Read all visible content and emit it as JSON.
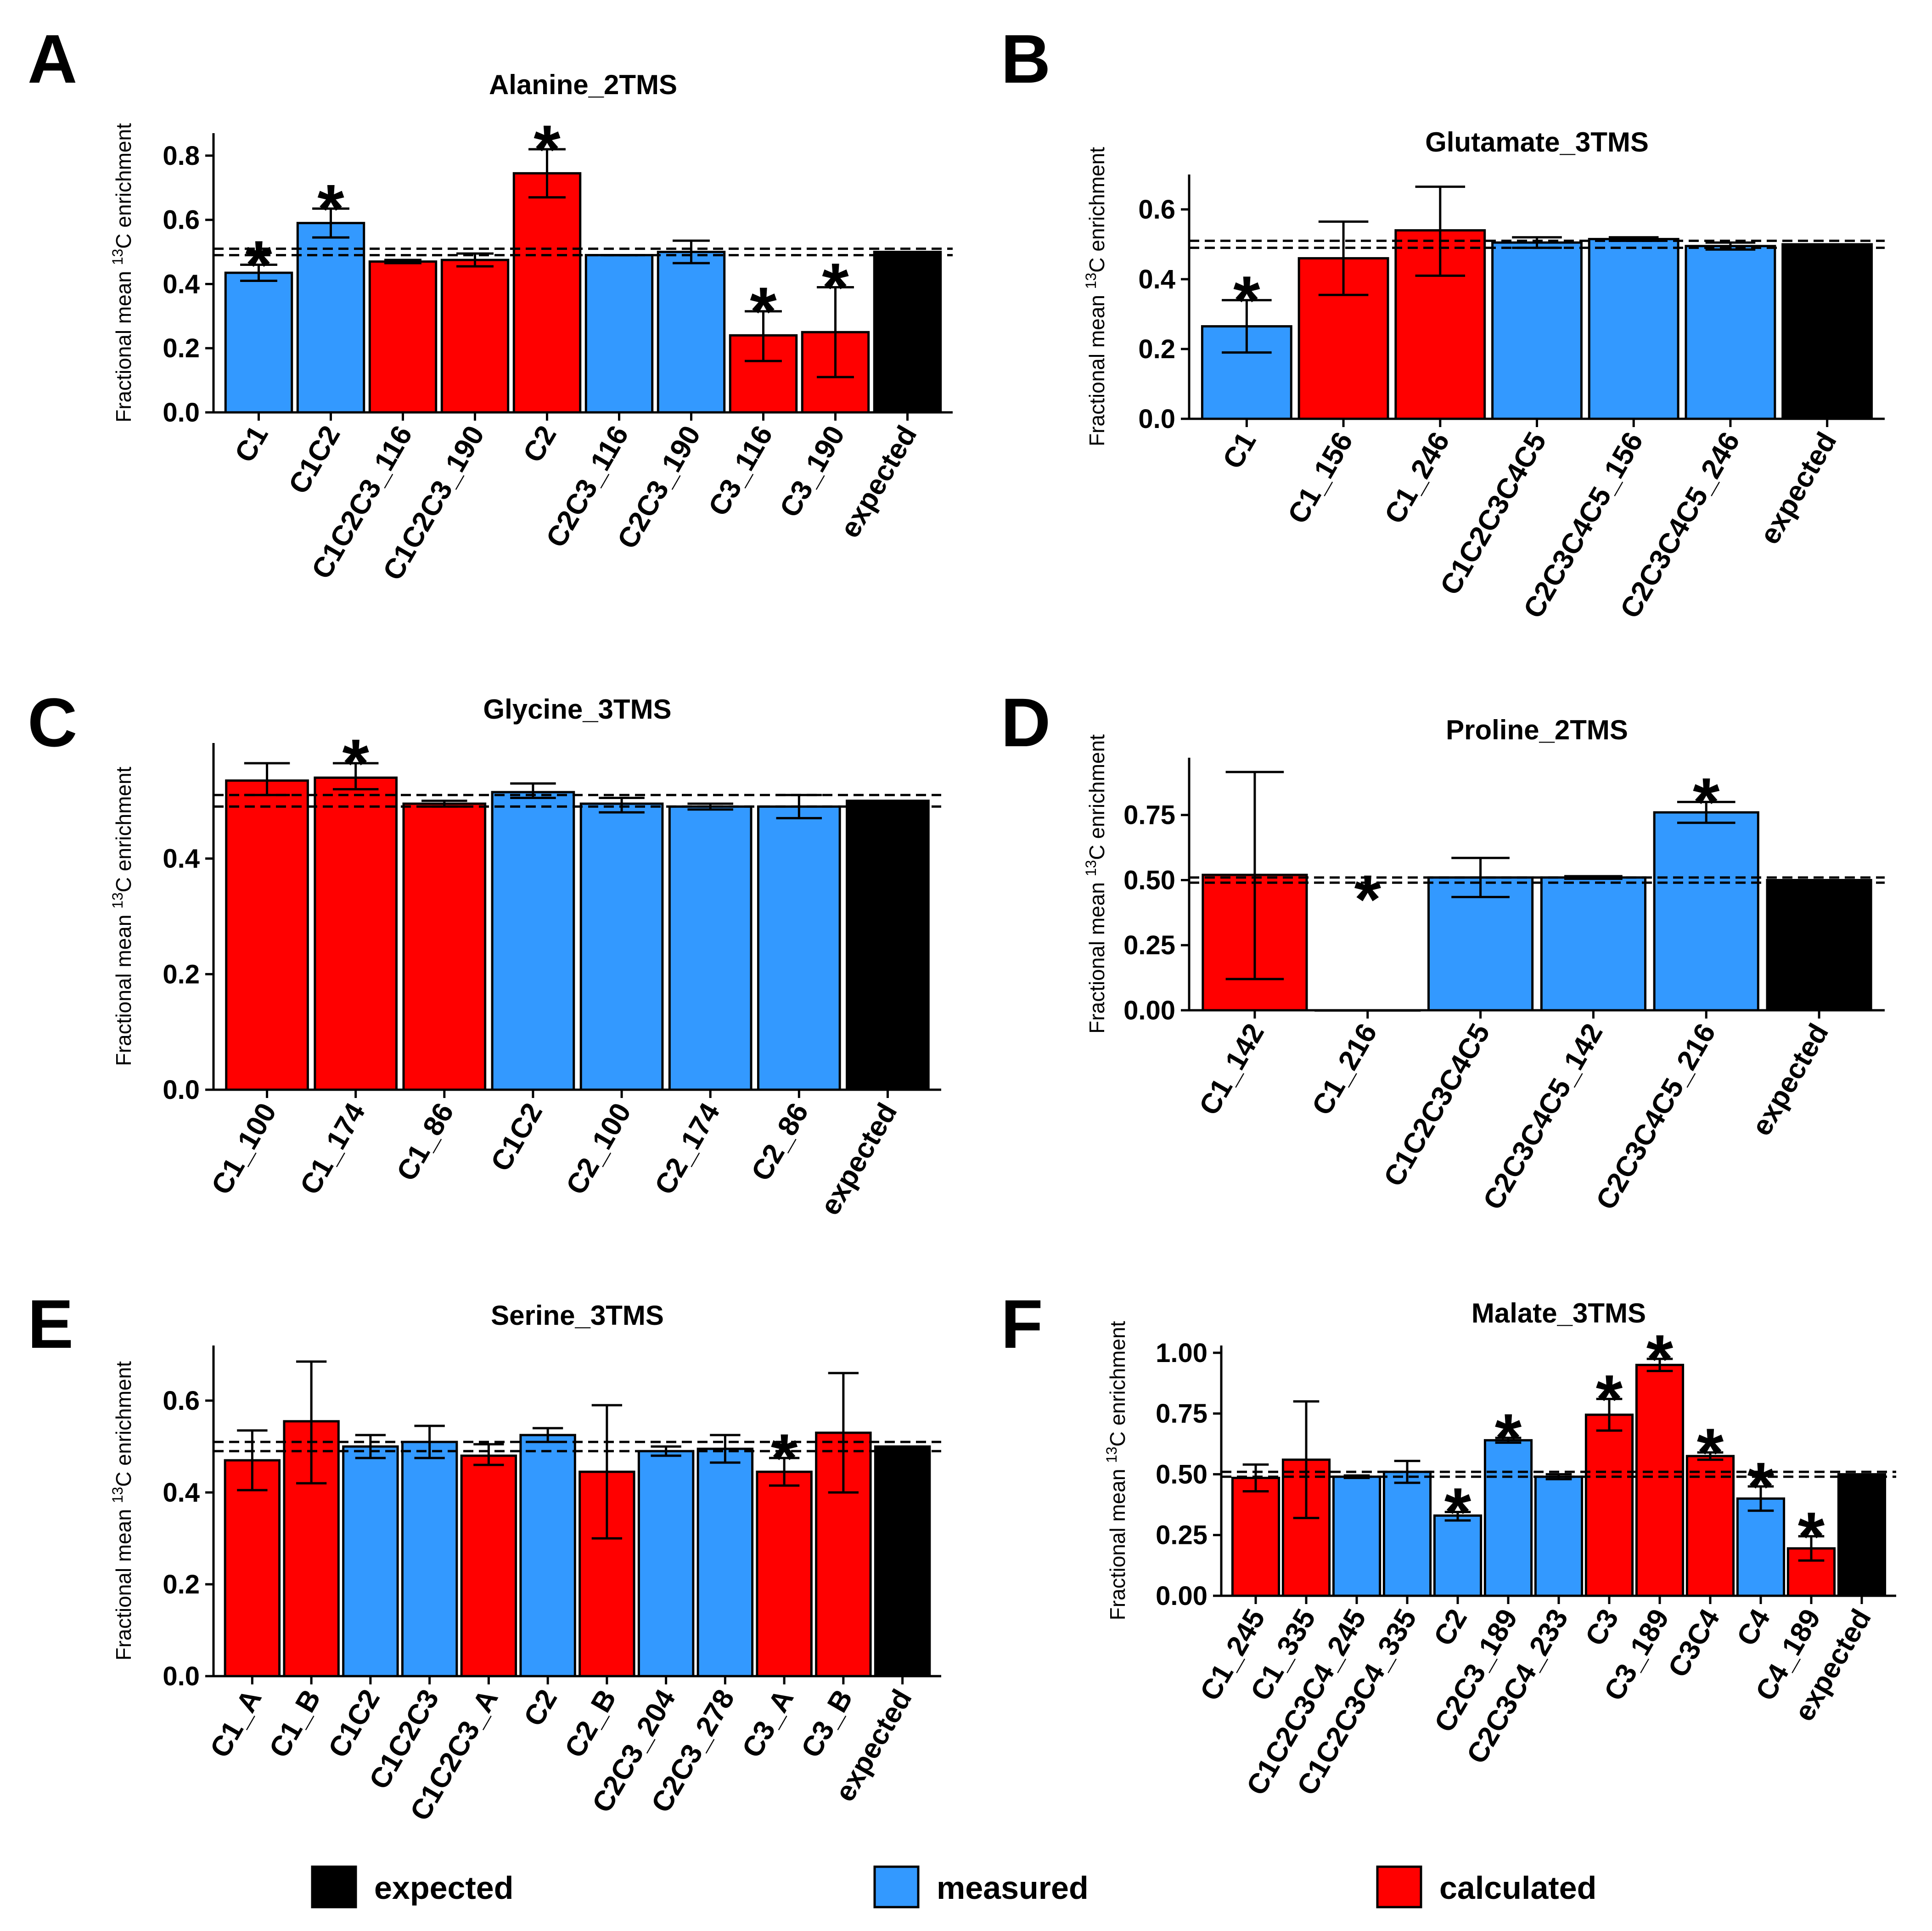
{
  "ylabel_prefix": "Fractional mean ",
  "ylabel_sup": "13",
  "ylabel_suffix": "C enrichment",
  "colors": {
    "expected": "#000000",
    "measured": "#3399ff",
    "calculated": "#ff0000",
    "none": "#ffffff"
  },
  "legend": [
    {
      "key": "expected",
      "label": "expected"
    },
    {
      "key": "measured",
      "label": "measured"
    },
    {
      "key": "calculated",
      "label": "calculated"
    }
  ],
  "chart_data": [
    {
      "panel": "A",
      "title": "Alanine_2TMS",
      "type": "bar",
      "ylim": [
        0,
        0.87
      ],
      "yticks": [
        0.0,
        0.2,
        0.4,
        0.6,
        0.8
      ],
      "tick_labels": [
        "0.0",
        "0.2",
        "0.4",
        "0.6",
        "0.8"
      ],
      "ref_lines": [
        0.49,
        0.51
      ],
      "categories": [
        "C1",
        "C1C2",
        "C1C2C3_116",
        "C1C2C3_190",
        "C2",
        "C2C3_116",
        "C2C3_190",
        "C3_116",
        "C3_190",
        "expected"
      ],
      "values": [
        0.435,
        0.59,
        0.47,
        0.475,
        0.745,
        0.49,
        0.5,
        0.24,
        0.25,
        0.5
      ],
      "err_low": [
        0.41,
        0.545,
        0.465,
        0.455,
        0.67,
        0.49,
        0.465,
        0.16,
        0.11,
        null
      ],
      "err_high": [
        0.46,
        0.635,
        0.475,
        0.495,
        0.82,
        0.49,
        0.535,
        0.315,
        0.39,
        null
      ],
      "group": [
        "measured",
        "measured",
        "calculated",
        "calculated",
        "calculated",
        "measured",
        "measured",
        "calculated",
        "calculated",
        "expected"
      ],
      "significant": [
        true,
        true,
        false,
        false,
        true,
        false,
        false,
        true,
        true,
        false
      ]
    },
    {
      "panel": "B",
      "title": "Glutamate_3TMS",
      "type": "bar",
      "ylim": [
        0,
        0.7
      ],
      "yticks": [
        0.0,
        0.2,
        0.4,
        0.6
      ],
      "tick_labels": [
        "0.0",
        "0.2",
        "0.4",
        "0.6"
      ],
      "ref_lines": [
        0.49,
        0.51
      ],
      "categories": [
        "C1",
        "C1_156",
        "C1_246",
        "C1C2C3C4C5",
        "C2C3C4C5_156",
        "C2C3C4C5_246",
        "expected"
      ],
      "values": [
        0.265,
        0.46,
        0.54,
        0.505,
        0.515,
        0.495,
        0.5
      ],
      "err_low": [
        0.19,
        0.355,
        0.41,
        0.49,
        0.51,
        0.485,
        null
      ],
      "err_high": [
        0.34,
        0.565,
        0.665,
        0.52,
        0.52,
        0.505,
        null
      ],
      "group": [
        "measured",
        "calculated",
        "calculated",
        "measured",
        "measured",
        "measured",
        "expected"
      ],
      "significant": [
        true,
        false,
        false,
        false,
        false,
        false,
        false
      ]
    },
    {
      "panel": "C",
      "title": "Glycine_3TMS",
      "type": "bar",
      "ylim": [
        0,
        0.6
      ],
      "yticks": [
        0.0,
        0.2,
        0.4
      ],
      "tick_labels": [
        "0.0",
        "0.2",
        "0.4"
      ],
      "ref_lines": [
        0.49,
        0.51
      ],
      "categories": [
        "C1_100",
        "C1_174",
        "C1_86",
        "C1C2",
        "C2_100",
        "C2_174",
        "C2_86",
        "expected"
      ],
      "values": [
        0.535,
        0.54,
        0.495,
        0.515,
        0.495,
        0.49,
        0.49,
        0.5
      ],
      "err_low": [
        0.51,
        0.52,
        0.49,
        0.505,
        0.48,
        0.485,
        0.47,
        null
      ],
      "err_high": [
        0.565,
        0.565,
        0.5,
        0.53,
        0.505,
        0.495,
        0.51,
        null
      ],
      "group": [
        "calculated",
        "calculated",
        "calculated",
        "measured",
        "measured",
        "measured",
        "measured",
        "expected"
      ],
      "significant": [
        false,
        true,
        false,
        false,
        false,
        false,
        false,
        false
      ]
    },
    {
      "panel": "D",
      "title": "Proline_2TMS",
      "type": "bar",
      "ylim": [
        0,
        0.97
      ],
      "yticks": [
        0.0,
        0.25,
        0.5,
        0.75
      ],
      "tick_labels": [
        "0.00",
        "0.25",
        "0.50",
        "0.75"
      ],
      "ref_lines": [
        0.49,
        0.51
      ],
      "categories": [
        "C1_142",
        "C1_216",
        "C1C2C3C4C5",
        "C2C3C4C5_142",
        "C2C3C4C5_216",
        "expected"
      ],
      "values": [
        0.52,
        0.0,
        0.51,
        0.51,
        0.76,
        0.5
      ],
      "err_low": [
        0.12,
        null,
        0.435,
        0.505,
        0.72,
        null
      ],
      "err_high": [
        0.915,
        null,
        0.585,
        0.515,
        0.8,
        null
      ],
      "group": [
        "calculated",
        "none",
        "measured",
        "measured",
        "measured",
        "expected"
      ],
      "significant": [
        false,
        true,
        false,
        false,
        true,
        false
      ]
    },
    {
      "panel": "E",
      "title": "Serine_3TMS",
      "type": "bar",
      "ylim": [
        0,
        0.72
      ],
      "yticks": [
        0.0,
        0.2,
        0.4,
        0.6
      ],
      "tick_labels": [
        "0.0",
        "0.2",
        "0.4",
        "0.6"
      ],
      "ref_lines": [
        0.49,
        0.51
      ],
      "categories": [
        "C1_A",
        "C1_B",
        "C1C2",
        "C1C2C3",
        "C1C2C3_A",
        "C2",
        "C2_B",
        "C2C3_204",
        "C2C3_278",
        "C3_A",
        "C3_B",
        "expected"
      ],
      "values": [
        0.47,
        0.555,
        0.5,
        0.51,
        0.48,
        0.525,
        0.445,
        0.49,
        0.495,
        0.445,
        0.53,
        0.5
      ],
      "err_low": [
        0.405,
        0.42,
        0.475,
        0.475,
        0.46,
        0.51,
        0.3,
        0.48,
        0.465,
        0.415,
        0.4,
        null
      ],
      "err_high": [
        0.535,
        0.685,
        0.525,
        0.545,
        0.505,
        0.54,
        0.59,
        0.5,
        0.525,
        0.475,
        0.66,
        null
      ],
      "group": [
        "calculated",
        "calculated",
        "measured",
        "measured",
        "calculated",
        "measured",
        "calculated",
        "measured",
        "measured",
        "calculated",
        "calculated",
        "expected"
      ],
      "significant": [
        false,
        false,
        false,
        false,
        false,
        false,
        false,
        false,
        false,
        true,
        false,
        false
      ]
    },
    {
      "panel": "F",
      "title": "Malate_3TMS",
      "type": "bar",
      "ylim": [
        0,
        1.03
      ],
      "yticks": [
        0.0,
        0.25,
        0.5,
        0.75,
        1.0
      ],
      "tick_labels": [
        "0.00",
        "0.25",
        "0.50",
        "0.75",
        "1.00"
      ],
      "ref_lines": [
        0.49,
        0.51
      ],
      "categories": [
        "C1_245",
        "C1_335",
        "C1C2C3C4_245",
        "C1C2C3C4_335",
        "C2",
        "C2C3_189",
        "C2C3C4_233",
        "C3",
        "C3_189",
        "C3C4",
        "C4",
        "C4_189",
        "expected"
      ],
      "values": [
        0.485,
        0.56,
        0.49,
        0.51,
        0.33,
        0.64,
        0.49,
        0.745,
        0.95,
        0.575,
        0.4,
        0.195,
        0.5
      ],
      "err_low": [
        0.43,
        0.32,
        0.485,
        0.465,
        0.31,
        0.63,
        0.48,
        0.68,
        0.925,
        0.56,
        0.35,
        0.145,
        null
      ],
      "err_high": [
        0.54,
        0.8,
        0.495,
        0.555,
        0.345,
        0.65,
        0.5,
        0.81,
        0.975,
        0.59,
        0.45,
        0.245,
        null
      ],
      "group": [
        "calculated",
        "calculated",
        "measured",
        "measured",
        "measured",
        "measured",
        "measured",
        "calculated",
        "calculated",
        "calculated",
        "measured",
        "calculated",
        "expected"
      ],
      "significant": [
        false,
        false,
        false,
        false,
        true,
        true,
        false,
        true,
        true,
        true,
        true,
        true,
        false
      ]
    }
  ]
}
